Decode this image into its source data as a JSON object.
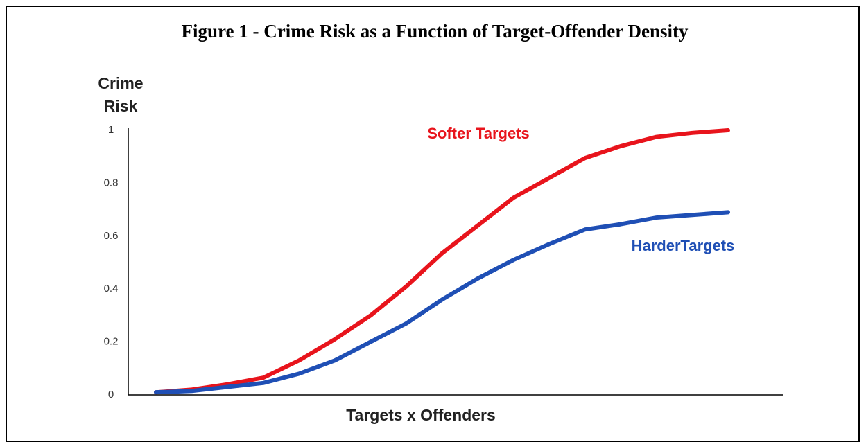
{
  "chart_data": {
    "type": "line",
    "title": "Figure 1 - Crime Risk as a Function of Target-Offender Density",
    "ylabel": "Crime Risk",
    "xlabel": "Targets x Offenders",
    "categories": [
      null,
      null,
      null,
      null,
      null,
      null,
      null,
      null,
      null,
      null,
      null,
      null,
      null,
      null,
      null,
      null,
      null
    ],
    "series": [
      {
        "name": "Softer Targets",
        "color": "#e8141c",
        "values": [
          0.01,
          0.02,
          0.04,
          0.065,
          0.13,
          0.21,
          0.3,
          0.41,
          0.535,
          0.64,
          0.745,
          0.82,
          0.895,
          0.94,
          0.975,
          0.99,
          1.0
        ]
      },
      {
        "name": "HarderTargets",
        "color": "#1f4fb5",
        "values": [
          0.01,
          0.015,
          0.03,
          0.045,
          0.08,
          0.13,
          0.2,
          0.27,
          0.36,
          0.44,
          0.51,
          0.57,
          0.625,
          0.645,
          0.67,
          0.68,
          0.69
        ]
      }
    ],
    "ylim": [
      0,
      1
    ],
    "yticks": [
      0,
      0.2,
      0.4,
      0.6,
      0.8,
      1
    ],
    "grid": false
  }
}
